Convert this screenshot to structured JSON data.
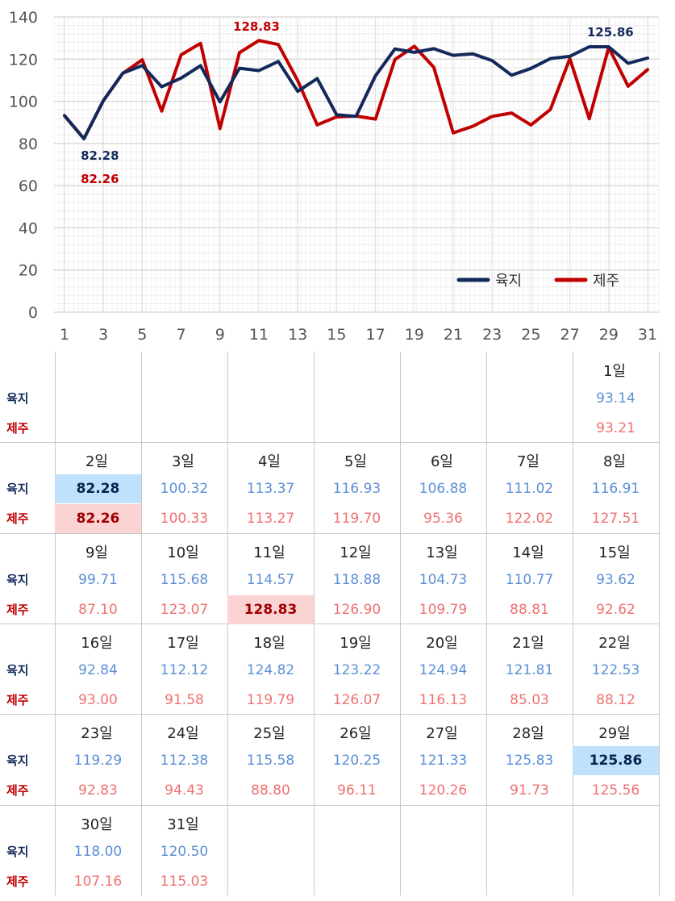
{
  "chart_data": {
    "type": "line",
    "x": [
      1,
      2,
      3,
      4,
      5,
      6,
      7,
      8,
      9,
      10,
      11,
      12,
      13,
      14,
      15,
      16,
      17,
      18,
      19,
      20,
      21,
      22,
      23,
      24,
      25,
      26,
      27,
      28,
      29,
      30,
      31
    ],
    "xticks": [
      "1",
      "3",
      "5",
      "7",
      "9",
      "11",
      "13",
      "15",
      "17",
      "19",
      "21",
      "23",
      "25",
      "27",
      "29",
      "31"
    ],
    "yticks": [
      "0",
      "20",
      "40",
      "60",
      "80",
      "100",
      "120",
      "140"
    ],
    "ylim": [
      0,
      140
    ],
    "legend_position": "bottom-right",
    "series": [
      {
        "name": "육지",
        "color": "#14295b",
        "values": [
          93.14,
          82.28,
          100.32,
          113.37,
          116.93,
          106.88,
          111.02,
          116.91,
          99.71,
          115.68,
          114.57,
          118.88,
          104.73,
          110.77,
          93.62,
          92.84,
          112.12,
          124.82,
          123.22,
          124.94,
          121.81,
          122.53,
          119.29,
          112.38,
          115.58,
          120.25,
          121.33,
          125.83,
          125.86,
          118.0,
          120.5
        ]
      },
      {
        "name": "제주",
        "color": "#c00000",
        "values": [
          93.21,
          82.26,
          100.33,
          113.27,
          119.7,
          95.36,
          122.02,
          127.51,
          87.1,
          123.07,
          128.83,
          126.9,
          109.79,
          88.81,
          92.62,
          93.0,
          91.58,
          119.79,
          126.07,
          116.13,
          85.03,
          88.12,
          92.83,
          94.43,
          88.8,
          96.11,
          120.26,
          91.73,
          125.56,
          107.16,
          115.03
        ]
      }
    ],
    "annotations": [
      {
        "text": "82.28",
        "series": "육지",
        "x": 2,
        "color": "#14295b"
      },
      {
        "text": "82.26",
        "series": "제주",
        "x": 2,
        "color": "#c00000"
      },
      {
        "text": "128.83",
        "series": "제주",
        "x": 11,
        "color": "#c00000"
      },
      {
        "text": "125.86",
        "series": "육지",
        "x": 29,
        "color": "#14295b"
      }
    ]
  },
  "calendar": {
    "labels": {
      "land": "육지",
      "jeju": "제주"
    },
    "land_label_color": "#14295b",
    "jeju_label_color": "#c00000",
    "land_value_color": "#5b8fd6",
    "jeju_value_color": "#f07070",
    "weeks": [
      [
        null,
        null,
        null,
        null,
        null,
        null,
        {
          "day": "1일",
          "land": "93.14",
          "jeju": "93.21"
        }
      ],
      [
        {
          "day": "2일",
          "land": "82.28",
          "jeju": "82.26",
          "hl_land": true,
          "hl_jeju": true
        },
        {
          "day": "3일",
          "land": "100.32",
          "jeju": "100.33"
        },
        {
          "day": "4일",
          "land": "113.37",
          "jeju": "113.27"
        },
        {
          "day": "5일",
          "land": "116.93",
          "jeju": "119.70"
        },
        {
          "day": "6일",
          "land": "106.88",
          "jeju": "95.36"
        },
        {
          "day": "7일",
          "land": "111.02",
          "jeju": "122.02"
        },
        {
          "day": "8일",
          "land": "116.91",
          "jeju": "127.51"
        }
      ],
      [
        {
          "day": "9일",
          "land": "99.71",
          "jeju": "87.10"
        },
        {
          "day": "10일",
          "land": "115.68",
          "jeju": "123.07"
        },
        {
          "day": "11일",
          "land": "114.57",
          "jeju": "128.83",
          "hl_jeju": true
        },
        {
          "day": "12일",
          "land": "118.88",
          "jeju": "126.90"
        },
        {
          "day": "13일",
          "land": "104.73",
          "jeju": "109.79"
        },
        {
          "day": "14일",
          "land": "110.77",
          "jeju": "88.81"
        },
        {
          "day": "15일",
          "land": "93.62",
          "jeju": "92.62"
        }
      ],
      [
        {
          "day": "16일",
          "land": "92.84",
          "jeju": "93.00"
        },
        {
          "day": "17일",
          "land": "112.12",
          "jeju": "91.58"
        },
        {
          "day": "18일",
          "land": "124.82",
          "jeju": "119.79"
        },
        {
          "day": "19일",
          "land": "123.22",
          "jeju": "126.07"
        },
        {
          "day": "20일",
          "land": "124.94",
          "jeju": "116.13"
        },
        {
          "day": "21일",
          "land": "121.81",
          "jeju": "85.03"
        },
        {
          "day": "22일",
          "land": "122.53",
          "jeju": "88.12"
        }
      ],
      [
        {
          "day": "23일",
          "land": "119.29",
          "jeju": "92.83"
        },
        {
          "day": "24일",
          "land": "112.38",
          "jeju": "94.43"
        },
        {
          "day": "25일",
          "land": "115.58",
          "jeju": "88.80"
        },
        {
          "day": "26일",
          "land": "120.25",
          "jeju": "96.11"
        },
        {
          "day": "27일",
          "land": "121.33",
          "jeju": "120.26"
        },
        {
          "day": "28일",
          "land": "125.83",
          "jeju": "91.73"
        },
        {
          "day": "29일",
          "land": "125.86",
          "jeju": "125.56",
          "hl_land": true
        }
      ],
      [
        {
          "day": "30일",
          "land": "118.00",
          "jeju": "107.16"
        },
        {
          "day": "31일",
          "land": "120.50",
          "jeju": "115.03"
        },
        null,
        null,
        null,
        null,
        null
      ]
    ]
  }
}
